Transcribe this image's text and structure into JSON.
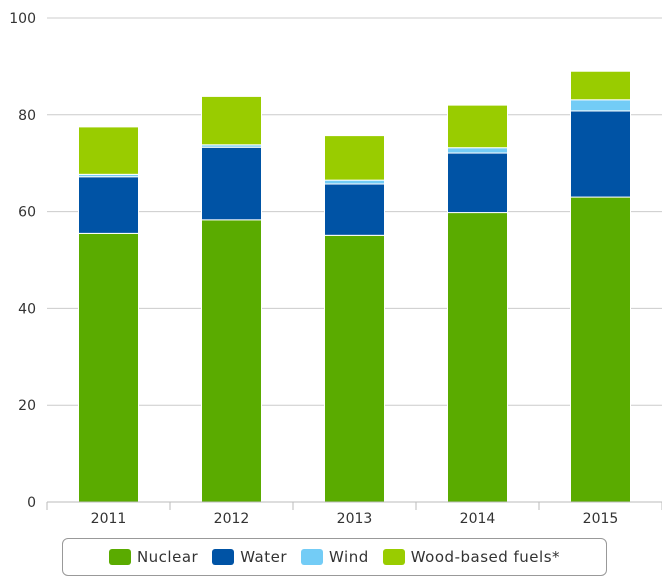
{
  "chart_data": {
    "type": "bar",
    "stacked": true,
    "categories": [
      "2011",
      "2012",
      "2013",
      "2014",
      "2015"
    ],
    "series": [
      {
        "name": "Nuclear",
        "color": "#5aab00",
        "values": [
          55.5,
          58.3,
          55.1,
          59.8,
          63.0
        ]
      },
      {
        "name": "Water",
        "color": "#0053a5",
        "values": [
          11.7,
          15.0,
          10.6,
          12.3,
          17.8
        ]
      },
      {
        "name": "Wind",
        "color": "#73ccf6",
        "values": [
          0.5,
          0.5,
          0.8,
          1.1,
          2.3
        ]
      },
      {
        "name": "Wood-based fuels*",
        "color": "#99cc00",
        "values": [
          9.8,
          10.0,
          9.2,
          8.8,
          5.9
        ]
      }
    ],
    "yticks": [
      0,
      20,
      40,
      60,
      80,
      100
    ],
    "ylim": [
      0,
      100
    ],
    "grid": true,
    "legend": "bottom"
  }
}
